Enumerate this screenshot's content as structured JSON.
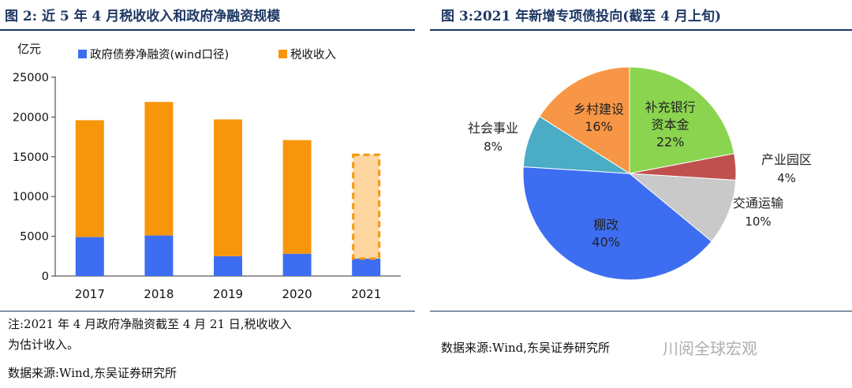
{
  "left_panel": {
    "title": "图 2:  近 5 年 4 月税收收入和政府净融资规模",
    "note_line1": "注:2021 年 4 月政府净融资截至 4 月 21 日,税收收入",
    "note_line2": "为估计收入。",
    "source": "数据来源:Wind,东吴证券研究所"
  },
  "right_panel": {
    "title": "图 3:2021 年新增专项债投向(截至 4 月上旬)",
    "source": "数据来源:Wind,东吴证券研究所"
  },
  "watermark": "川阅全球宏观",
  "colors": {
    "title": "#1f3864",
    "blue": "#3d6ef2",
    "orange": "#f7960b",
    "orange_light": "#fed7a0",
    "green": "#8bd450",
    "red": "#c0504d",
    "gray": "#c9c9c9",
    "teal": "#4bacc6",
    "pie_blue": "#3d6ef2",
    "pie_orange": "#f79646"
  },
  "chart_data": [
    {
      "type": "bar",
      "stacked": true,
      "ylabel": "亿元",
      "categories": [
        "2017",
        "2018",
        "2019",
        "2020",
        "2021"
      ],
      "ylim": [
        0,
        25000
      ],
      "yticks": [
        "0",
        "5000",
        "10000",
        "15000",
        "20000",
        "25000"
      ],
      "series": [
        {
          "name": "政府债券净融资(wind口径)",
          "values": [
            4900,
            5100,
            2500,
            2800,
            2200
          ]
        },
        {
          "name": "税收收入",
          "values": [
            14700,
            16800,
            17200,
            14300,
            13200
          ]
        }
      ],
      "estimated_last_category": true,
      "legend_position": "top"
    },
    {
      "type": "pie",
      "slices": [
        {
          "label": "补充银行资本金",
          "value": 22,
          "pct": "22%"
        },
        {
          "label": "产业园区",
          "value": 4,
          "pct": "4%"
        },
        {
          "label": "交通运输",
          "value": 10,
          "pct": "10%"
        },
        {
          "label": "棚改",
          "value": 40,
          "pct": "40%"
        },
        {
          "label": "社会事业",
          "value": 8,
          "pct": "8%"
        },
        {
          "label": "乡村建设",
          "value": 16,
          "pct": "16%"
        }
      ]
    }
  ]
}
